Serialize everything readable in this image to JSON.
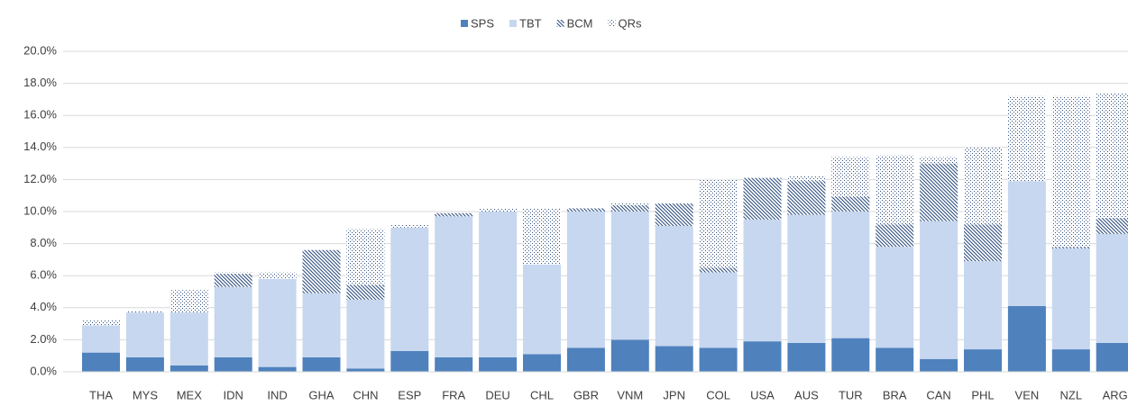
{
  "chart_data": {
    "type": "stacked-bar",
    "categories": [
      "THA",
      "MYS",
      "MEX",
      "IDN",
      "IND",
      "GHA",
      "CHN",
      "ESP",
      "FRA",
      "DEU",
      "CHL",
      "GBR",
      "VNM",
      "JPN",
      "COL",
      "USA",
      "AUS",
      "TUR",
      "BRA",
      "CAN",
      "PHL",
      "VEN",
      "NZL",
      "ARG"
    ],
    "series": [
      {
        "name": "SPS",
        "color": "#4f81bd",
        "pattern": "solid",
        "values": [
          1.2,
          0.9,
          0.4,
          0.9,
          0.3,
          0.9,
          0.2,
          1.3,
          0.9,
          0.9,
          1.1,
          1.5,
          2.0,
          1.6,
          1.5,
          1.9,
          1.8,
          2.1,
          1.5,
          0.8,
          1.4,
          4.1,
          1.4,
          1.8
        ]
      },
      {
        "name": "TBT",
        "color": "#c6d7ef",
        "pattern": "solid",
        "values": [
          1.7,
          2.8,
          3.3,
          4.4,
          5.5,
          4.0,
          4.3,
          7.7,
          8.8,
          9.1,
          5.6,
          8.5,
          8.0,
          7.5,
          4.7,
          7.6,
          8.0,
          7.9,
          6.3,
          8.6,
          5.5,
          7.8,
          6.3,
          6.8
        ]
      },
      {
        "name": "BCM",
        "color": "#2f4f7f",
        "pattern": "hatch",
        "values": [
          0,
          0,
          0,
          0.8,
          0,
          2.7,
          0.9,
          0,
          0.2,
          0,
          0,
          0.2,
          0.4,
          1.4,
          0.3,
          2.6,
          2.1,
          0.9,
          1.4,
          3.6,
          2.3,
          0,
          0.1,
          1.0
        ]
      },
      {
        "name": "QRs",
        "color": "#2f4f7f",
        "pattern": "dots",
        "values": [
          0.3,
          0.1,
          1.4,
          0.1,
          0.4,
          0,
          3.5,
          0.2,
          0,
          0.2,
          3.5,
          0,
          0.1,
          0,
          5.5,
          0,
          0.3,
          2.5,
          4.3,
          0.4,
          4.8,
          5.3,
          9.4,
          7.8
        ]
      }
    ],
    "ylim": [
      0,
      20
    ],
    "yticks": [
      {
        "value": 0,
        "label": "0.0%"
      },
      {
        "value": 2,
        "label": "2.0%"
      },
      {
        "value": 4,
        "label": "4.0%"
      },
      {
        "value": 6,
        "label": "6.0%"
      },
      {
        "value": 8,
        "label": "8.0%"
      },
      {
        "value": 10,
        "label": "10.0%"
      },
      {
        "value": 12,
        "label": "12.0%"
      },
      {
        "value": 14,
        "label": "14.0%"
      },
      {
        "value": 16,
        "label": "16.0%"
      },
      {
        "value": 18,
        "label": "18.0%"
      },
      {
        "value": 20,
        "label": "20.0%"
      }
    ],
    "grid": true,
    "legend": "top"
  }
}
